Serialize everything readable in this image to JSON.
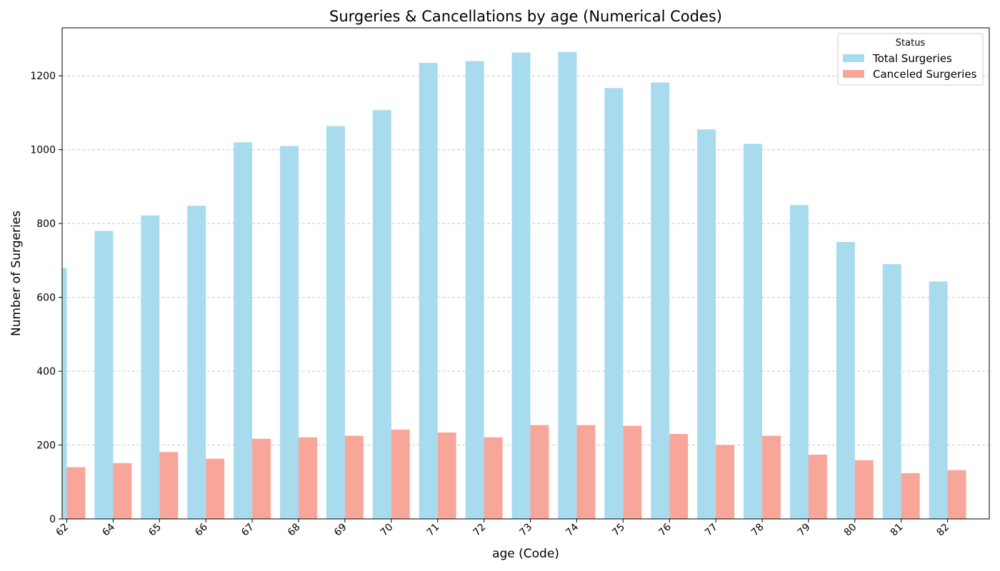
{
  "chart_data": {
    "type": "bar",
    "title": "Surgeries & Cancellations by age (Numerical Codes)",
    "xlabel": "age (Code)",
    "ylabel": "Number of Surgeries",
    "categories": [
      "62",
      "64",
      "65",
      "66",
      "67",
      "68",
      "69",
      "70",
      "71",
      "72",
      "73",
      "74",
      "75",
      "76",
      "77",
      "78",
      "79",
      "80",
      "81",
      "82"
    ],
    "series": [
      {
        "name": "Total Surgeries",
        "color": "#a8dbee",
        "values": [
          680,
          780,
          822,
          848,
          1020,
          1010,
          1064,
          1107,
          1235,
          1240,
          1263,
          1265,
          1167,
          1182,
          1055,
          1016,
          850,
          750,
          690,
          643
        ]
      },
      {
        "name": "Canceled Surgeries",
        "color": "#f8a59a",
        "values": [
          140,
          151,
          181,
          163,
          217,
          221,
          225,
          242,
          234,
          221,
          254,
          254,
          252,
          230,
          200,
          225,
          174,
          159,
          124,
          132
        ]
      }
    ],
    "yticks": [
      0,
      200,
      400,
      600,
      800,
      1000,
      1200
    ],
    "ylim": [
      0,
      1330
    ],
    "grid": "y-dashed",
    "legend": {
      "title": "Status",
      "placement": "upper right"
    }
  }
}
